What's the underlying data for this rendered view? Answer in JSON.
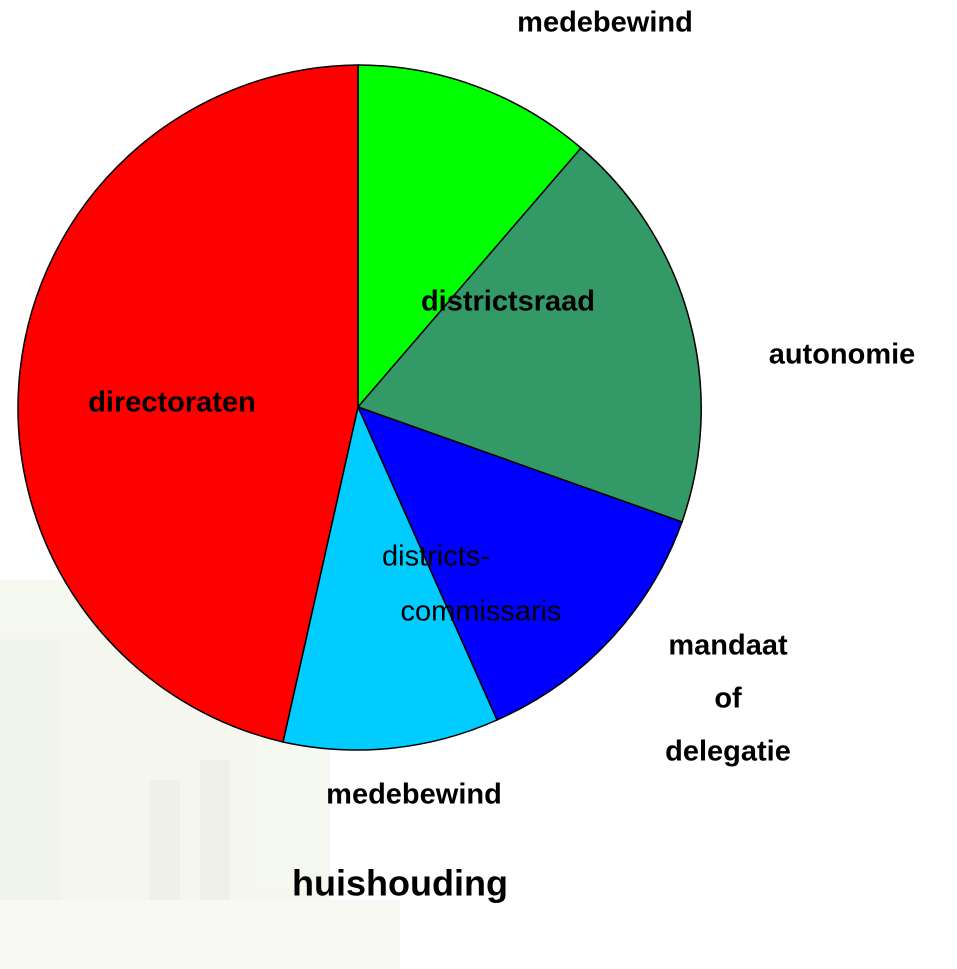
{
  "labels": {
    "top": "medebewind",
    "districtsraad": "districtsraad",
    "autonomie": "autonomie",
    "directoraten": "directoraten",
    "districtscommissaris": [
      "districts-",
      "commissaris"
    ],
    "mandaat": [
      "mandaat",
      "of",
      "delegatie"
    ],
    "bottom": "medebewind",
    "footer": "huishouding"
  }
}
